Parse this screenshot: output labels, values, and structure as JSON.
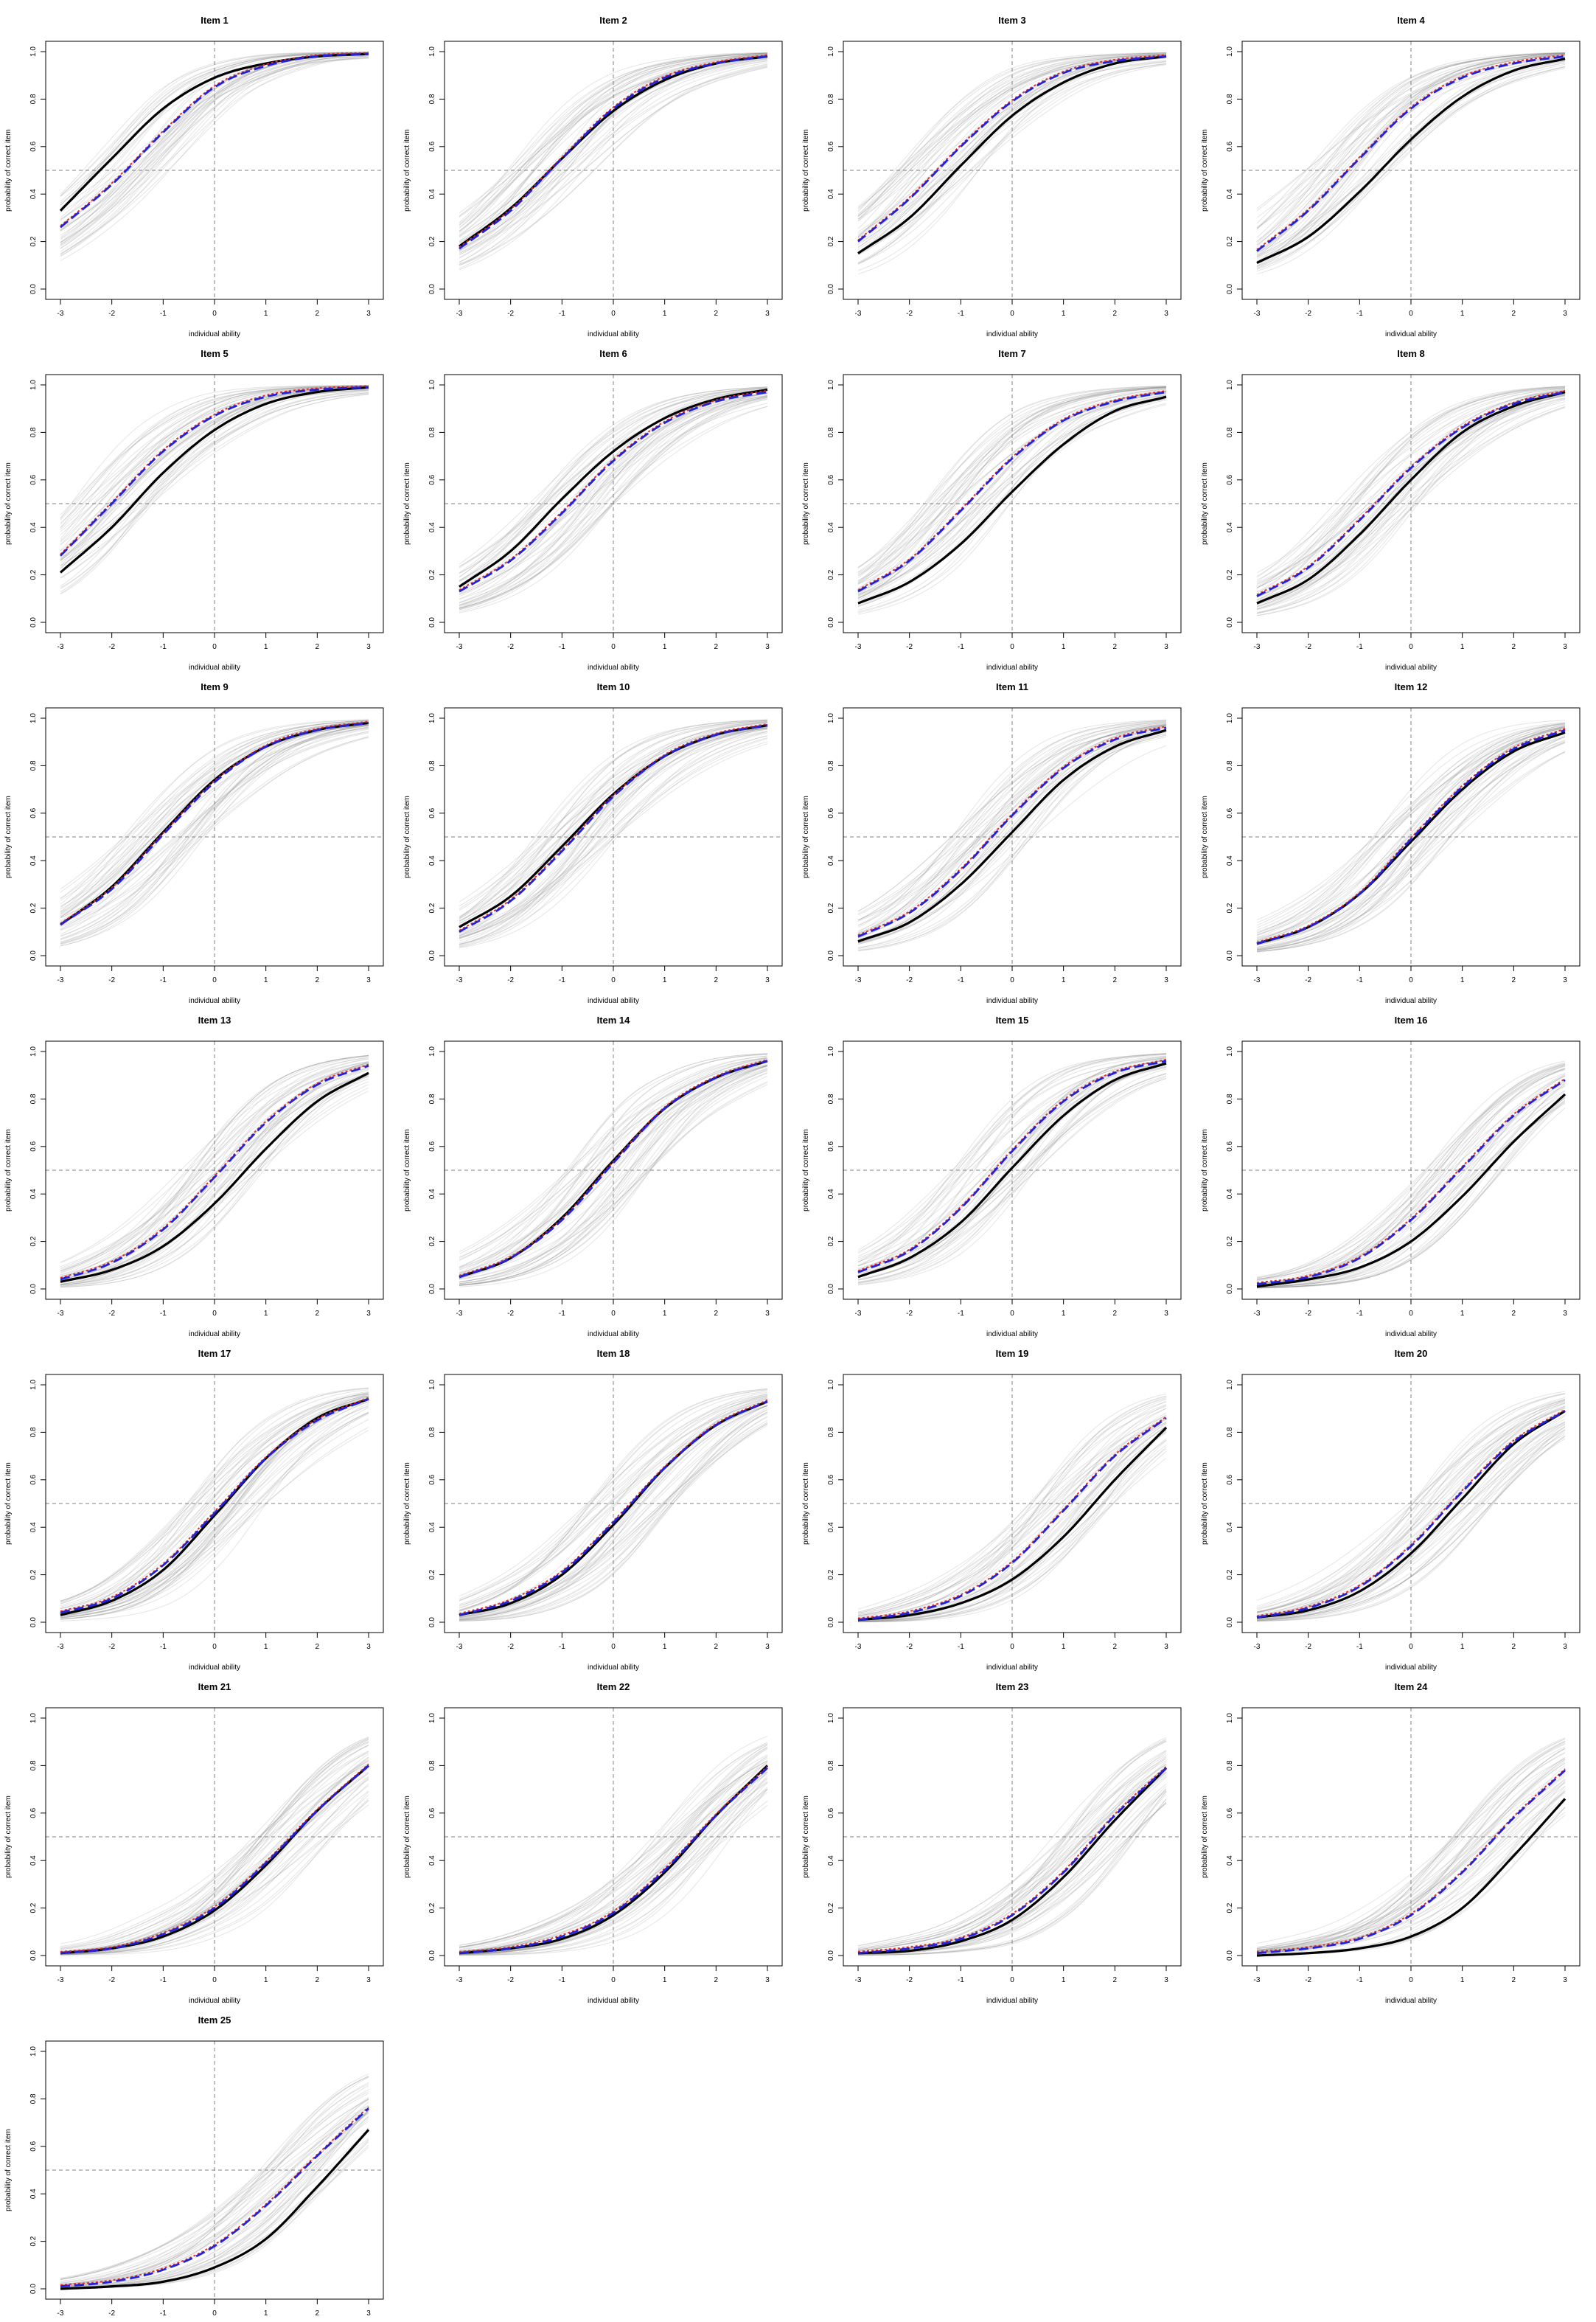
{
  "chart_data": {
    "type": "line",
    "xlabel": "individual ability",
    "ylabel": "probability of correct item",
    "xlim": [
      -3,
      3
    ],
    "ylim": [
      0,
      1
    ],
    "x_ticks": [
      -3,
      -2,
      -1,
      0,
      1,
      2,
      3
    ],
    "y_ticks": [
      0.0,
      0.2,
      0.4,
      0.6,
      0.8,
      1.0
    ],
    "y_tick_labels": [
      "0.0",
      "0.2",
      "0.4",
      "0.6",
      "0.8",
      "1.0"
    ],
    "reference_lines": {
      "x": 0,
      "y": 0.5,
      "style": "dashed",
      "color": "#808080"
    },
    "colors": {
      "true_curve": "#000000",
      "red_curve": "#e0302a",
      "blue_curve": "#2222dd",
      "simulated_curves": "#888888"
    },
    "curve_points": [
      -3,
      -2,
      -1,
      0,
      1,
      2,
      3
    ],
    "panels": [
      {
        "title": "Item 1",
        "black": [
          0.33,
          0.55,
          0.76,
          0.89,
          0.95,
          0.98,
          0.99
        ],
        "blue": [
          0.26,
          0.44,
          0.66,
          0.85,
          0.94,
          0.98,
          0.99
        ]
      },
      {
        "title": "Item 2",
        "black": [
          0.18,
          0.34,
          0.55,
          0.75,
          0.88,
          0.95,
          0.98
        ],
        "blue": [
          0.17,
          0.33,
          0.55,
          0.76,
          0.89,
          0.95,
          0.98
        ]
      },
      {
        "title": "Item 3",
        "black": [
          0.15,
          0.3,
          0.52,
          0.73,
          0.87,
          0.95,
          0.98
        ],
        "blue": [
          0.2,
          0.38,
          0.6,
          0.79,
          0.91,
          0.96,
          0.98
        ]
      },
      {
        "title": "Item 4",
        "black": [
          0.11,
          0.22,
          0.41,
          0.63,
          0.81,
          0.92,
          0.97
        ],
        "blue": [
          0.16,
          0.33,
          0.55,
          0.76,
          0.89,
          0.95,
          0.98
        ]
      },
      {
        "title": "Item 5",
        "black": [
          0.21,
          0.4,
          0.63,
          0.81,
          0.92,
          0.97,
          0.99
        ],
        "blue": [
          0.28,
          0.5,
          0.72,
          0.87,
          0.95,
          0.98,
          0.99
        ]
      },
      {
        "title": "Item 6",
        "black": [
          0.15,
          0.3,
          0.52,
          0.72,
          0.86,
          0.94,
          0.98
        ],
        "blue": [
          0.13,
          0.26,
          0.46,
          0.68,
          0.84,
          0.93,
          0.97
        ]
      },
      {
        "title": "Item 7",
        "black": [
          0.08,
          0.17,
          0.33,
          0.55,
          0.75,
          0.89,
          0.95
        ],
        "blue": [
          0.13,
          0.26,
          0.47,
          0.69,
          0.85,
          0.93,
          0.97
        ]
      },
      {
        "title": "Item 8",
        "black": [
          0.08,
          0.18,
          0.37,
          0.6,
          0.8,
          0.91,
          0.97
        ],
        "blue": [
          0.11,
          0.23,
          0.43,
          0.65,
          0.82,
          0.92,
          0.97
        ]
      },
      {
        "title": "Item 9",
        "black": [
          0.13,
          0.29,
          0.52,
          0.74,
          0.88,
          0.95,
          0.98
        ],
        "blue": [
          0.13,
          0.28,
          0.51,
          0.73,
          0.88,
          0.95,
          0.98
        ]
      },
      {
        "title": "Item 10",
        "black": [
          0.12,
          0.25,
          0.46,
          0.68,
          0.84,
          0.93,
          0.97
        ],
        "blue": [
          0.1,
          0.23,
          0.44,
          0.67,
          0.84,
          0.93,
          0.97
        ]
      },
      {
        "title": "Item 11",
        "black": [
          0.06,
          0.14,
          0.3,
          0.52,
          0.74,
          0.88,
          0.95
        ],
        "blue": [
          0.08,
          0.18,
          0.36,
          0.59,
          0.79,
          0.91,
          0.96
        ]
      },
      {
        "title": "Item 12",
        "black": [
          0.05,
          0.12,
          0.26,
          0.48,
          0.7,
          0.86,
          0.94
        ],
        "blue": [
          0.05,
          0.12,
          0.26,
          0.49,
          0.71,
          0.87,
          0.95
        ]
      },
      {
        "title": "Item 13",
        "black": [
          0.03,
          0.08,
          0.18,
          0.36,
          0.59,
          0.79,
          0.91
        ],
        "blue": [
          0.04,
          0.11,
          0.25,
          0.47,
          0.7,
          0.86,
          0.94
        ]
      },
      {
        "title": "Item 14",
        "black": [
          0.05,
          0.13,
          0.3,
          0.54,
          0.76,
          0.89,
          0.96
        ],
        "blue": [
          0.05,
          0.13,
          0.29,
          0.53,
          0.76,
          0.89,
          0.96
        ]
      },
      {
        "title": "Item 15",
        "black": [
          0.05,
          0.13,
          0.28,
          0.51,
          0.73,
          0.88,
          0.95
        ],
        "blue": [
          0.07,
          0.16,
          0.34,
          0.58,
          0.79,
          0.91,
          0.96
        ]
      },
      {
        "title": "Item 16",
        "black": [
          0.01,
          0.04,
          0.09,
          0.2,
          0.39,
          0.62,
          0.82
        ],
        "blue": [
          0.02,
          0.05,
          0.13,
          0.29,
          0.51,
          0.73,
          0.88
        ]
      },
      {
        "title": "Item 17",
        "black": [
          0.03,
          0.09,
          0.22,
          0.45,
          0.69,
          0.86,
          0.94
        ],
        "blue": [
          0.04,
          0.1,
          0.24,
          0.46,
          0.69,
          0.85,
          0.94
        ]
      },
      {
        "title": "Item 18",
        "black": [
          0.03,
          0.08,
          0.2,
          0.41,
          0.65,
          0.83,
          0.93
        ],
        "blue": [
          0.03,
          0.09,
          0.21,
          0.42,
          0.65,
          0.83,
          0.93
        ]
      },
      {
        "title": "Item 19",
        "black": [
          0.01,
          0.03,
          0.08,
          0.18,
          0.36,
          0.6,
          0.82
        ],
        "blue": [
          0.01,
          0.04,
          0.11,
          0.25,
          0.47,
          0.7,
          0.86
        ]
      },
      {
        "title": "Item 20",
        "black": [
          0.02,
          0.05,
          0.13,
          0.29,
          0.52,
          0.75,
          0.89
        ],
        "blue": [
          0.02,
          0.06,
          0.15,
          0.32,
          0.55,
          0.76,
          0.89
        ]
      },
      {
        "title": "Item 21",
        "black": [
          0.01,
          0.03,
          0.08,
          0.19,
          0.38,
          0.61,
          0.8
        ],
        "blue": [
          0.01,
          0.03,
          0.09,
          0.2,
          0.39,
          0.61,
          0.8
        ]
      },
      {
        "title": "Item 22",
        "black": [
          0.01,
          0.03,
          0.07,
          0.17,
          0.35,
          0.59,
          0.8
        ],
        "blue": [
          0.01,
          0.03,
          0.08,
          0.18,
          0.36,
          0.59,
          0.79
        ]
      },
      {
        "title": "Item 23",
        "black": [
          0.01,
          0.02,
          0.06,
          0.15,
          0.33,
          0.57,
          0.79
        ],
        "blue": [
          0.01,
          0.03,
          0.07,
          0.17,
          0.35,
          0.59,
          0.79
        ]
      },
      {
        "title": "Item 24",
        "black": [
          0.0,
          0.01,
          0.03,
          0.08,
          0.2,
          0.42,
          0.66
        ],
        "blue": [
          0.01,
          0.03,
          0.07,
          0.17,
          0.35,
          0.58,
          0.78
        ]
      },
      {
        "title": "Item 25",
        "black": [
          0.0,
          0.01,
          0.03,
          0.09,
          0.21,
          0.43,
          0.67
        ],
        "blue": [
          0.01,
          0.03,
          0.08,
          0.18,
          0.35,
          0.56,
          0.76
        ]
      }
    ]
  }
}
